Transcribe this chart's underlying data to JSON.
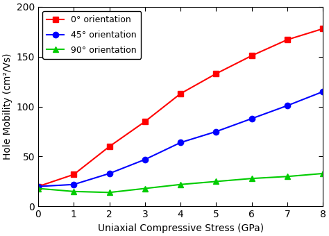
{
  "x": [
    0,
    1,
    2,
    3,
    4,
    5,
    6,
    7,
    8
  ],
  "red_y": [
    20,
    32,
    60,
    85,
    113,
    133,
    151,
    167,
    178
  ],
  "blue_y": [
    20,
    22,
    33,
    47,
    64,
    75,
    88,
    101,
    115
  ],
  "green_y": [
    18,
    15,
    14,
    18,
    22,
    25,
    28,
    30,
    33
  ],
  "red_color": "#ff0000",
  "blue_color": "#0000ff",
  "green_color": "#00cc00",
  "xlabel": "Uniaxial Compressive Stress (GPa)",
  "ylabel": "Hole Mobility (cm²/Vs)",
  "ylim": [
    0,
    200
  ],
  "xlim": [
    0,
    8
  ],
  "yticks": [
    0,
    50,
    100,
    150,
    200
  ],
  "xticks": [
    0,
    1,
    2,
    3,
    4,
    5,
    6,
    7,
    8
  ],
  "legend_labels": [
    "0° orientation",
    "45° orientation",
    "90° orientation"
  ],
  "legend_fontsize": 9,
  "xlabel_fontsize": 10,
  "ylabel_fontsize": 10,
  "tick_fontsize": 10,
  "linewidth": 1.5,
  "markersize": 6
}
